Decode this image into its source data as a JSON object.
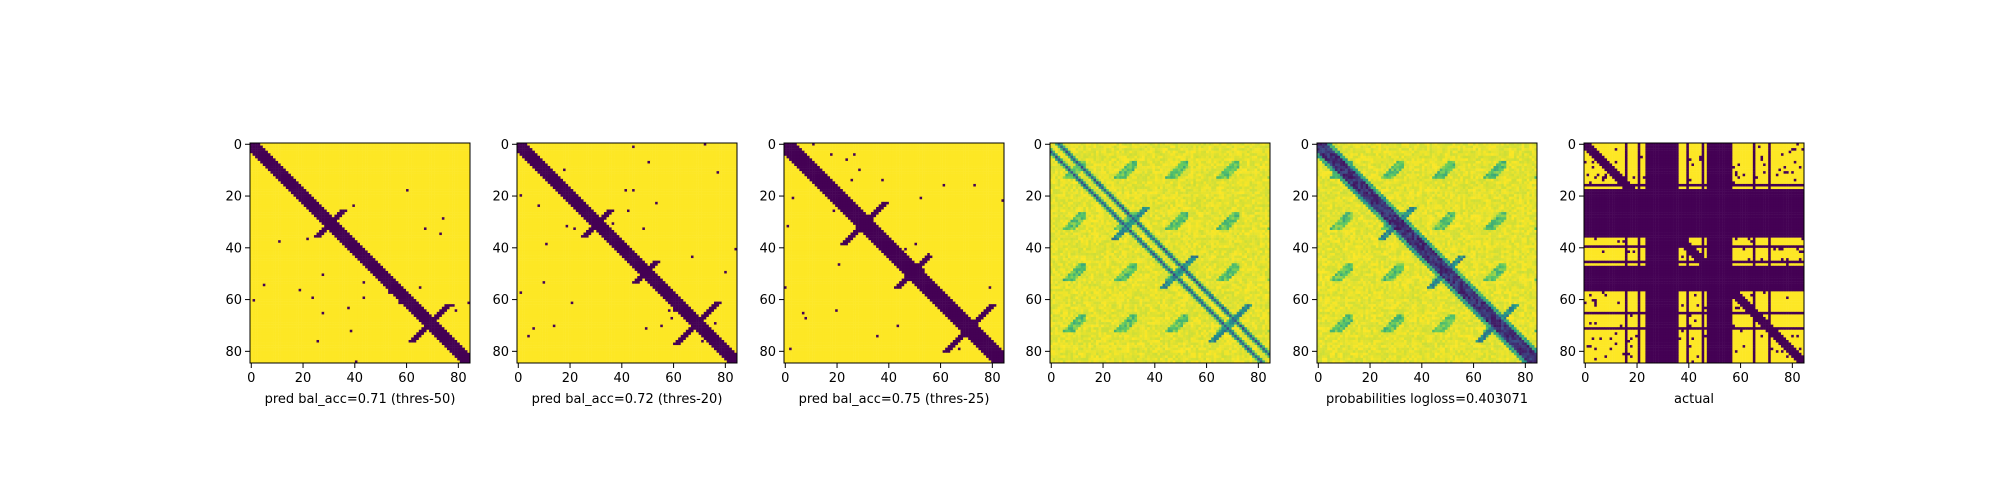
{
  "figure": {
    "background": "#ffffff"
  },
  "chart_data": [
    {
      "type": "heatmap",
      "xlabel": "pred bal_acc=0.71 (thres-50)",
      "ylabel": "",
      "title": "",
      "size": 86,
      "xlim": [
        0,
        85
      ],
      "ylim": [
        85,
        0
      ],
      "xticks": [
        0,
        20,
        40,
        60,
        80
      ],
      "yticks": [
        0,
        20,
        40,
        60,
        80
      ],
      "colormap": "viridis",
      "values_range": [
        0,
        1
      ],
      "value_encoding": "binary",
      "diagonal_band_width": 3,
      "contact_clusters": [
        {
          "center_row": 31,
          "center_col": 31,
          "extent": 5
        },
        {
          "center_row": 70,
          "center_col": 70,
          "extent": 7
        }
      ],
      "colors": {
        "low": "#440154",
        "high": "#fde725"
      }
    },
    {
      "type": "heatmap",
      "xlabel": "pred bal_acc=0.72 (thres-20)",
      "ylabel": "",
      "title": "",
      "size": 86,
      "xlim": [
        0,
        85
      ],
      "ylim": [
        85,
        0
      ],
      "xticks": [
        0,
        20,
        40,
        60,
        80
      ],
      "yticks": [
        0,
        20,
        40,
        60,
        80
      ],
      "colormap": "viridis",
      "values_range": [
        0,
        1
      ],
      "value_encoding": "binary",
      "diagonal_band_width": 3,
      "contact_clusters": [
        {
          "center_row": 31,
          "center_col": 31,
          "extent": 5
        },
        {
          "center_row": 50,
          "center_col": 50,
          "extent": 4
        },
        {
          "center_row": 70,
          "center_col": 70,
          "extent": 8
        }
      ],
      "colors": {
        "low": "#440154",
        "high": "#fde725"
      }
    },
    {
      "type": "heatmap",
      "xlabel": "pred bal_acc=0.75 (thres-25)",
      "ylabel": "",
      "title": "",
      "size": 86,
      "xlim": [
        0,
        85
      ],
      "ylim": [
        85,
        0
      ],
      "xticks": [
        0,
        20,
        40,
        60,
        80
      ],
      "yticks": [
        0,
        20,
        40,
        60,
        80
      ],
      "colormap": "viridis",
      "values_range": [
        0,
        1
      ],
      "value_encoding": "binary",
      "diagonal_band_width": 4,
      "contact_clusters": [
        {
          "center_row": 31,
          "center_col": 31,
          "extent": 8
        },
        {
          "center_row": 50,
          "center_col": 50,
          "extent": 6
        },
        {
          "center_row": 72,
          "center_col": 72,
          "extent": 9
        }
      ],
      "colors": {
        "low": "#440154",
        "high": "#fde725"
      }
    },
    {
      "type": "heatmap",
      "xlabel": "",
      "ylabel": "",
      "title": "",
      "size": 86,
      "xlim": [
        0,
        85
      ],
      "ylim": [
        85,
        0
      ],
      "xticks": [
        0,
        20,
        40,
        60,
        80
      ],
      "yticks": [
        0,
        20,
        40,
        60,
        80
      ],
      "colormap": "viridis",
      "values_range": [
        0,
        1
      ],
      "value_encoding": "continuous",
      "diagonal_lines": [
        -3,
        3
      ],
      "contact_clusters": [
        {
          "center_row": 31,
          "center_col": 31,
          "extent": 6
        },
        {
          "center_row": 50,
          "center_col": 50,
          "extent": 6
        },
        {
          "center_row": 70,
          "center_col": 70,
          "extent": 7
        }
      ],
      "colors": {
        "low": "#440154",
        "high": "#fde725"
      }
    },
    {
      "type": "heatmap",
      "xlabel": "probabilities logloss=0.403071",
      "ylabel": "",
      "title": "",
      "size": 86,
      "xlim": [
        0,
        85
      ],
      "ylim": [
        85,
        0
      ],
      "xticks": [
        0,
        20,
        40,
        60,
        80
      ],
      "yticks": [
        0,
        20,
        40,
        60,
        80
      ],
      "colormap": "viridis",
      "values_range": [
        0,
        1
      ],
      "value_encoding": "continuous",
      "diagonal_band_width": 3,
      "contact_clusters": [
        {
          "center_row": 31,
          "center_col": 31,
          "extent": 6
        },
        {
          "center_row": 50,
          "center_col": 50,
          "extent": 6
        },
        {
          "center_row": 70,
          "center_col": 70,
          "extent": 7
        }
      ],
      "colors": {
        "low": "#440154",
        "high": "#fde725"
      }
    },
    {
      "type": "heatmap",
      "xlabel": "actual",
      "ylabel": "",
      "title": "",
      "size": 86,
      "xlim": [
        0,
        85
      ],
      "ylim": [
        85,
        0
      ],
      "xticks": [
        0,
        20,
        40,
        60,
        80
      ],
      "yticks": [
        0,
        20,
        40,
        60,
        80
      ],
      "colormap": "viridis",
      "values_range": [
        0,
        1
      ],
      "value_encoding": "binary",
      "solid_bands_index_ranges": [
        [
          24,
          36
        ],
        [
          48,
          56
        ]
      ],
      "thin_bands_index": [
        16,
        21,
        36,
        40,
        46,
        57,
        66,
        72
      ],
      "diagonal_band_width": 2,
      "colors": {
        "low": "#440154",
        "high": "#fde725"
      }
    }
  ]
}
